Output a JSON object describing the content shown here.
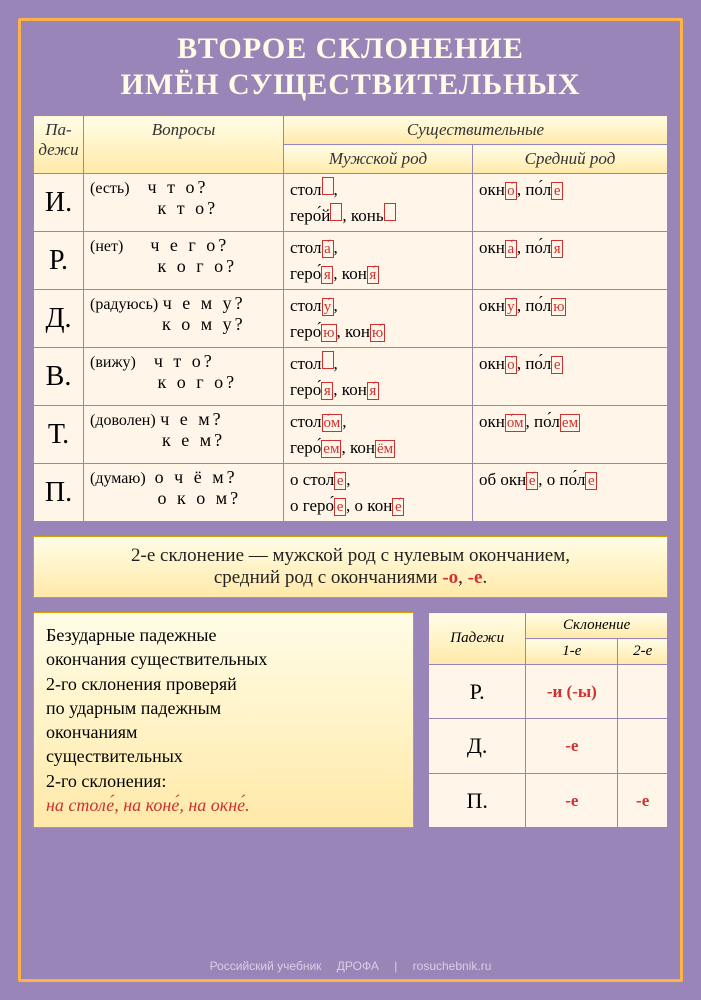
{
  "title_line1": "ВТОРОЕ СКЛОНЕНИЕ",
  "title_line2": "ИМЁН СУЩЕСТВИТЕЛЬНЫХ",
  "headers": {
    "cases": "Па-\nдежи",
    "questions": "Вопросы",
    "nouns": "Существительные",
    "masc": "Мужской род",
    "neut": "Средний род"
  },
  "rows": [
    {
      "case": "И.",
      "hint": "(есть)",
      "q1": "ч т о?",
      "q2": "к т о?"
    },
    {
      "case": "Р.",
      "hint": "(нет)",
      "q1": "ч е г о?",
      "q2": "к о г о?"
    },
    {
      "case": "Д.",
      "hint": "(радуюсь)",
      "q1": "ч е м у?",
      "q2": "к о м у?"
    },
    {
      "case": "В.",
      "hint": "(вижу)",
      "q1": "ч т о?",
      "q2": "к о г о?"
    },
    {
      "case": "Т.",
      "hint": "(доволен)",
      "q1": "ч е м?",
      "q2": "к е м?"
    },
    {
      "case": "П.",
      "hint": "(думаю)",
      "q1": "о  ч ё м?",
      "q2": "о  к о м?"
    }
  ],
  "note": {
    "line1": "2-е склонение — мужской род  с нулевым окончанием,",
    "line2_a": "средний род с окончаниями ",
    "line2_b": "-о",
    "line2_c": ", ",
    "line2_d": "-е",
    "line2_e": "."
  },
  "advice": {
    "l1": "Безударные падежные",
    "l2": "окончания существительных",
    "l3": "2-го склонения проверяй",
    "l4": "по ударным падежным",
    "l5": "окончаниям",
    "l6": "существительных",
    "l7": "2-го склонения:",
    "ex": "на столе́, на коне́, на окне́."
  },
  "mini": {
    "h_cases": "Падежи",
    "h_decl": "Склонение",
    "h1": "1-е",
    "h2": "2-е",
    "r": [
      {
        "c": "Р.",
        "v1": "-и (-ы)",
        "v2": ""
      },
      {
        "c": "Д.",
        "v1": "-е",
        "v2": ""
      },
      {
        "c": "П.",
        "v1": "-е",
        "v2": "-е"
      }
    ]
  },
  "footer": {
    "a": "Российский учебник",
    "b": "ДРОФА",
    "c": "rosuchebnik.ru"
  },
  "colors": {
    "bg": "#9a85b8",
    "accent_border": "#ffb347",
    "row_bg": "#fff6e9",
    "header_grad_top": "#fffde7",
    "header_grad_bot": "#ffe9a8",
    "red": "#d03030"
  }
}
